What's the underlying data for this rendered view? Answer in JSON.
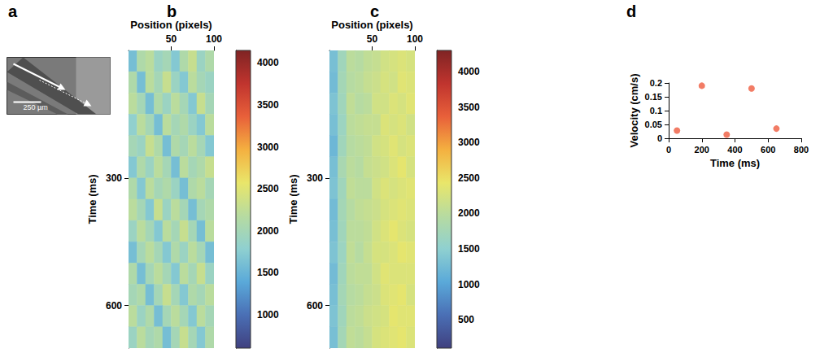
{
  "chart_data": [
    {
      "type": "image",
      "label": "a",
      "scale_bar_label": "250 µm"
    },
    {
      "type": "heatmap",
      "label": "b",
      "xlabel": "Position (pixels)",
      "ylabel": "Time (ms)",
      "xlim": [
        0,
        100
      ],
      "xticks": [
        50,
        100
      ],
      "ylim": [
        0,
        700
      ],
      "yticks": [
        300,
        600
      ],
      "x_edges": [
        0,
        10,
        20,
        30,
        40,
        50,
        60,
        70,
        80,
        90,
        100
      ],
      "y_edges": [
        0,
        50,
        100,
        150,
        200,
        250,
        300,
        350,
        400,
        450,
        500,
        550,
        600,
        650,
        700
      ],
      "cells": [
        [
          1600,
          2100,
          2200,
          1900,
          2000,
          1700,
          2100,
          2300,
          1900,
          2100
        ],
        [
          2100,
          1600,
          2200,
          2000,
          2300,
          1900,
          1700,
          2200,
          2000,
          1900
        ],
        [
          2200,
          2000,
          1600,
          2100,
          1900,
          2200,
          2000,
          1700,
          2300,
          2000
        ],
        [
          1800,
          2200,
          2000,
          1600,
          2200,
          2000,
          2100,
          1900,
          1700,
          2200
        ],
        [
          2000,
          1900,
          2300,
          2100,
          1600,
          2100,
          2000,
          2200,
          2000,
          1700
        ],
        [
          1700,
          2100,
          1900,
          2200,
          2000,
          1600,
          2200,
          2000,
          2100,
          2300
        ],
        [
          2100,
          1700,
          2200,
          2000,
          2100,
          1900,
          1600,
          2100,
          2200,
          2000
        ],
        [
          2200,
          2000,
          1700,
          2300,
          1900,
          2200,
          2000,
          1600,
          2000,
          2100
        ],
        [
          1900,
          2200,
          2000,
          1700,
          2200,
          2000,
          2300,
          2000,
          1600,
          2200
        ],
        [
          1600,
          2000,
          2200,
          2000,
          1700,
          2100,
          1900,
          2200,
          2000,
          1600
        ],
        [
          2100,
          1600,
          2000,
          2200,
          2000,
          1700,
          2200,
          2000,
          2300,
          1900
        ],
        [
          2000,
          2100,
          1600,
          2000,
          2300,
          2000,
          1700,
          2100,
          2000,
          2200
        ],
        [
          2200,
          1900,
          2100,
          1600,
          2000,
          2200,
          2000,
          1700,
          2200,
          2000
        ],
        [
          1900,
          2200,
          2000,
          2100,
          1600,
          2000,
          2300,
          2000,
          1700,
          2100
        ]
      ],
      "colorbar_lim": [
        600,
        4150
      ],
      "colorbar_ticks": [
        1000,
        1500,
        2000,
        2500,
        3000,
        3500,
        4000
      ]
    },
    {
      "type": "heatmap",
      "label": "c",
      "xlabel": "Position (pixels)",
      "ylabel": "Time (ms)",
      "xlim": [
        0,
        100
      ],
      "xticks": [
        50,
        100
      ],
      "ylim": [
        0,
        700
      ],
      "yticks": [
        300,
        600
      ],
      "x_edges": [
        0,
        10,
        20,
        30,
        40,
        50,
        60,
        70,
        80,
        90,
        100
      ],
      "y_edges": [
        0,
        50,
        100,
        150,
        200,
        250,
        300,
        350,
        400,
        450,
        500,
        550,
        600,
        650,
        700
      ],
      "cells": [
        [
          1300,
          1700,
          2000,
          1950,
          2050,
          2100,
          2200,
          2250,
          2300,
          2250
        ],
        [
          1250,
          1750,
          1950,
          2000,
          2100,
          2150,
          2250,
          2200,
          2350,
          2300
        ],
        [
          1350,
          1700,
          2050,
          1950,
          2000,
          2200,
          2200,
          2300,
          2250,
          2350
        ],
        [
          1300,
          1650,
          2000,
          2050,
          2100,
          2100,
          2300,
          2250,
          2300,
          2200
        ],
        [
          1200,
          1700,
          1950,
          2000,
          2050,
          2200,
          2250,
          2350,
          2250,
          2300
        ],
        [
          1300,
          1800,
          2000,
          1950,
          2100,
          2150,
          2200,
          2300,
          2400,
          2250
        ],
        [
          1350,
          1700,
          2050,
          2000,
          2000,
          2200,
          2300,
          2250,
          2300,
          2350
        ],
        [
          1250,
          1750,
          1950,
          2050,
          2100,
          2150,
          2250,
          2300,
          2350,
          2300
        ],
        [
          1300,
          1700,
          2000,
          2000,
          2050,
          2200,
          2300,
          2400,
          2300,
          2250
        ],
        [
          1350,
          1650,
          2050,
          1950,
          2100,
          2250,
          2250,
          2300,
          2400,
          2350
        ],
        [
          1250,
          1700,
          2000,
          2050,
          2050,
          2200,
          2350,
          2300,
          2300,
          2300
        ],
        [
          1300,
          1750,
          1950,
          2000,
          2100,
          2150,
          2300,
          2350,
          2400,
          2250
        ],
        [
          1350,
          1700,
          2000,
          2050,
          2150,
          2200,
          2250,
          2400,
          2350,
          2350
        ],
        [
          1300,
          1750,
          2050,
          2000,
          2100,
          2250,
          2300,
          2350,
          2400,
          2300
        ]
      ],
      "colorbar_lim": [
        100,
        4300
      ],
      "colorbar_ticks": [
        500,
        1000,
        1500,
        2000,
        2500,
        3000,
        3500,
        4000
      ]
    },
    {
      "type": "scatter",
      "label": "d",
      "xlabel": "Time (ms)",
      "ylabel": "Velocity (cm/s)",
      "x": [
        50,
        200,
        350,
        500,
        650
      ],
      "values": [
        0.028,
        0.19,
        0.013,
        0.18,
        0.035
      ],
      "xlim": [
        0,
        800
      ],
      "xticks": [
        0,
        200,
        400,
        600,
        800
      ],
      "ylim": [
        0,
        0.2
      ],
      "yticks": [
        0,
        0.05,
        0.1,
        0.15,
        0.2
      ],
      "color": "#ef5b3f",
      "marker": "circle"
    }
  ]
}
